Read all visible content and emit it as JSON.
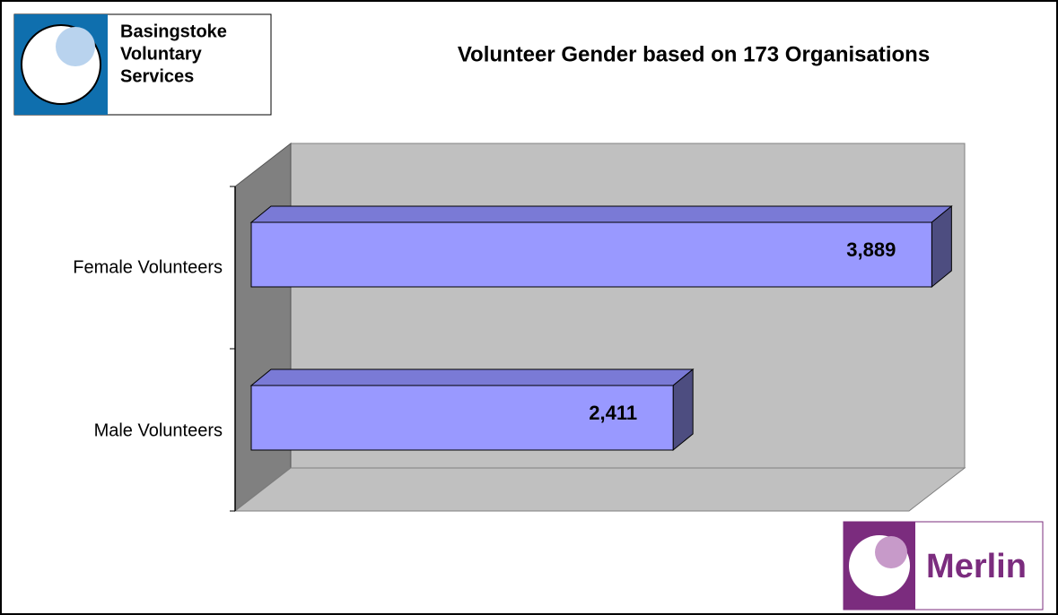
{
  "header_logo": {
    "lines": [
      "Basingstoke",
      "Voluntary",
      "Services"
    ]
  },
  "footer_logo": {
    "name": "Merlin"
  },
  "chart_data": {
    "type": "bar3d",
    "title": "Volunteer Gender based on 173 Organisations",
    "categories": [
      "Female Volunteers",
      "Male Volunteers"
    ],
    "values": [
      3889,
      2411
    ],
    "value_labels": [
      "3,889",
      "2,411"
    ],
    "color": "#9999ff",
    "xlim": [
      0,
      4000
    ]
  }
}
